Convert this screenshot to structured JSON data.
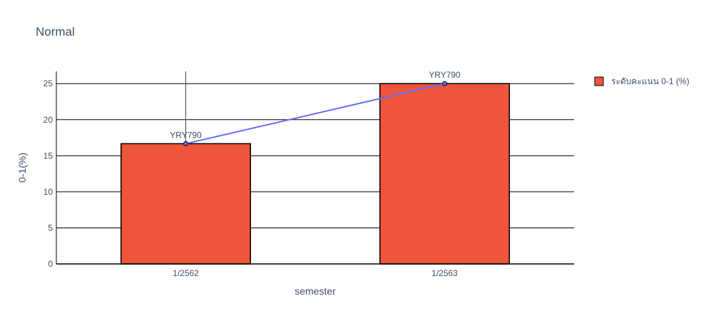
{
  "chart_data": {
    "type": "bar",
    "title": "Normal",
    "xlabel": "semester",
    "ylabel": "0-1(%)",
    "categories": [
      "1/2562",
      "1/2563"
    ],
    "ylim": [
      0,
      26.7
    ],
    "yticks": [
      0,
      5,
      10,
      15,
      20,
      25
    ],
    "grid": true,
    "legend_position": "top-right",
    "series": [
      {
        "name": "ระดับคะแนน 0-1 (%)",
        "type": "bar",
        "values": [
          16.67,
          25
        ],
        "color": "#ef553b"
      }
    ],
    "line_overlay": {
      "values": [
        16.67,
        25
      ],
      "labels": [
        "YRY790",
        "YRY790"
      ],
      "color": "#636efa",
      "error_bar_upper": [
        26.7,
        null
      ]
    }
  }
}
